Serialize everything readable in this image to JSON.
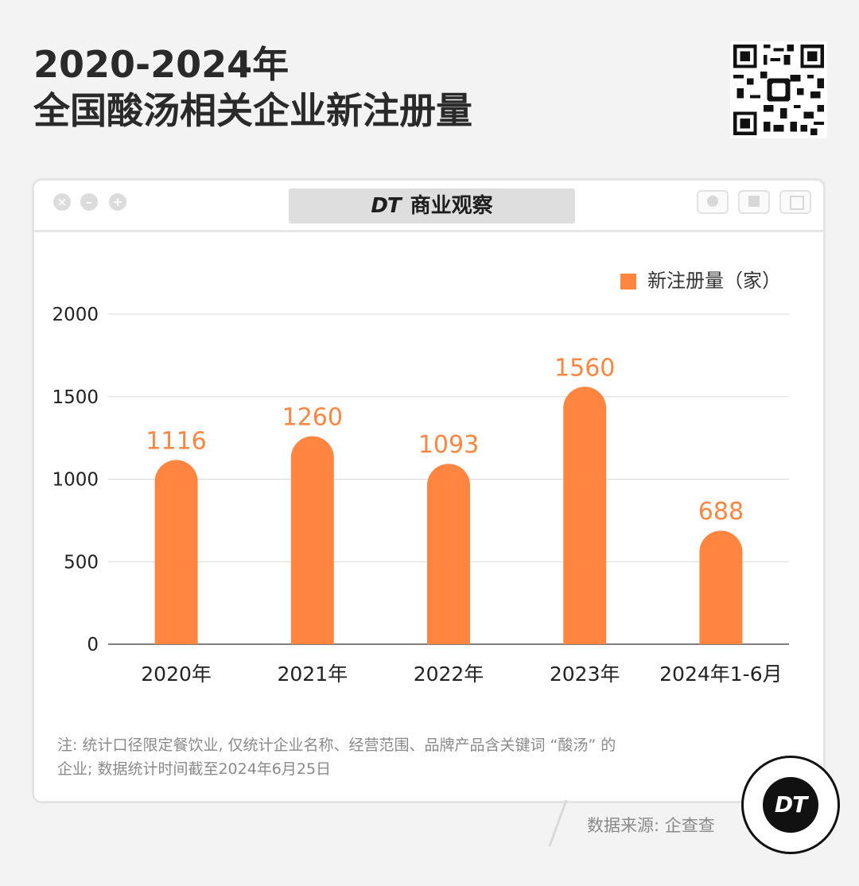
{
  "header": {
    "title_line1": "2020-2024年",
    "title_line2": "全国酸汤相关企业新注册量"
  },
  "window": {
    "tab_brand_mark": "DT",
    "tab_title": "商业观察"
  },
  "chart_data": {
    "type": "bar",
    "categories": [
      "2020年",
      "2021年",
      "2022年",
      "2023年",
      "2024年1-6月"
    ],
    "series": [
      {
        "name": "新注册量（家）",
        "values": [
          1116,
          1260,
          1093,
          1560,
          688
        ],
        "color": "#ff8540"
      }
    ],
    "ylim": [
      0,
      2000
    ],
    "yticks": [
      0,
      500,
      1000,
      1500,
      2000
    ],
    "grid": true,
    "legend_position": "top-right",
    "data_labels": true
  },
  "footer": {
    "note_line1": "注: 统计口径限定餐饮业, 仅统计企业名称、经营范围、品牌产品含关键词 “酸汤” 的",
    "note_line2": "企业; 数据统计时间截至2024年6月25日",
    "source": "数据来源: 企查查",
    "logo_text": "DT"
  },
  "colors": {
    "accent": "#ff8540",
    "background": "#f3f3f3",
    "grid": "#d9d9d9"
  },
  "icons": [
    "close-icon",
    "minimize-icon",
    "maximize-icon",
    "qr-code",
    "dt-logo"
  ]
}
